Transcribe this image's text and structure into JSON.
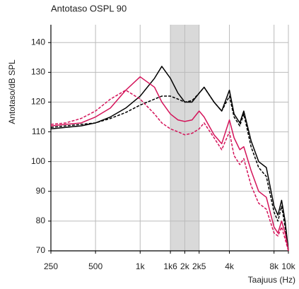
{
  "chart_data": {
    "type": "line",
    "title": "Antotaso OSPL 90",
    "ylabel": "Antotaso/dB SPL",
    "xlabel": "Taajuus (Hz)",
    "x": [
      250,
      315,
      400,
      500,
      630,
      800,
      1000,
      1250,
      1400,
      1600,
      1800,
      2000,
      2240,
      2500,
      2700,
      3150,
      3550,
      4000,
      4300,
      4700,
      5000,
      5600,
      6300,
      7100,
      8000,
      8500,
      9000,
      9500,
      10000
    ],
    "series": [
      {
        "color": "#000000",
        "dash": false,
        "values": [
          111,
          111.5,
          112,
          113,
          115,
          118,
          122,
          128,
          132,
          128,
          123,
          120,
          120,
          123,
          125,
          120,
          117,
          124,
          116,
          113,
          117,
          107,
          100,
          98,
          85,
          82,
          87,
          80,
          70
        ]
      },
      {
        "color": "#000000",
        "dash": true,
        "values": [
          111.5,
          112,
          112.5,
          113,
          114.5,
          116.5,
          119,
          121,
          122,
          122,
          121,
          120,
          120.5,
          123,
          125,
          120,
          117,
          122,
          115,
          112,
          116,
          105,
          98,
          95,
          83,
          80,
          85,
          78,
          70
        ]
      },
      {
        "color": "#d4145a",
        "dash": false,
        "values": [
          112,
          112.5,
          113,
          115,
          118,
          124,
          128.5,
          125,
          120,
          116,
          114,
          113.5,
          114,
          117,
          115,
          109,
          106,
          114,
          108,
          104,
          105,
          97,
          90,
          88,
          78,
          76,
          80,
          76,
          70
        ]
      },
      {
        "color": "#d4145a",
        "dash": true,
        "values": [
          112.5,
          113,
          114.5,
          117,
          121,
          124,
          121,
          116,
          113,
          111,
          110,
          109,
          109.5,
          111,
          113,
          108,
          104,
          110,
          102,
          99,
          101,
          92,
          86,
          84,
          76,
          75,
          78,
          74,
          70
        ]
      }
    ],
    "xscale": "log",
    "xlim": [
      250,
      10000
    ],
    "xticks": [
      250,
      500,
      {
        "value": 1000,
        "label": "1k"
      },
      {
        "value": 1600,
        "label": "1k6"
      },
      {
        "value": 2000,
        "label": "2k"
      },
      {
        "value": 2500,
        "label": "2k5"
      },
      {
        "value": 4000,
        "label": "4k"
      },
      {
        "value": 8000,
        "label": "8k"
      },
      {
        "value": 10000,
        "label": "10k"
      }
    ],
    "ylim": [
      70,
      146
    ],
    "yticks": [
      70,
      80,
      90,
      100,
      110,
      120,
      130,
      140
    ],
    "band": [
      1600,
      2500
    ],
    "band_color": "#d9d9d9",
    "grid": true
  }
}
